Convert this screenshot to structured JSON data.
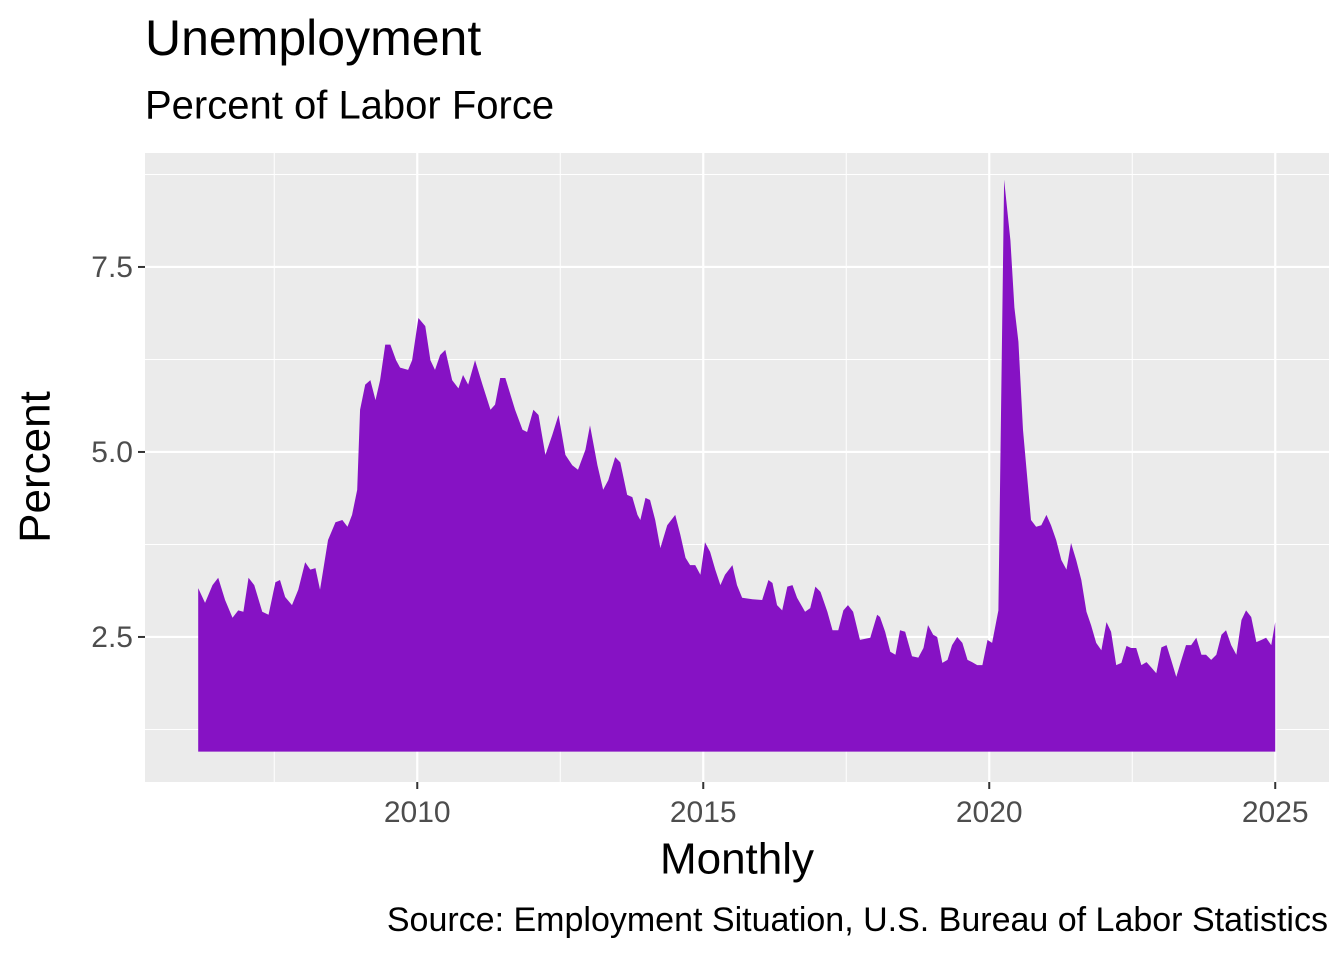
{
  "chart_data": {
    "type": "area",
    "title": "Unemployment",
    "subtitle": "Percent of Labor Force",
    "x_label": "Monthly",
    "y_label": "Percent",
    "caption": "Source: Employment Situation, U.S. Bureau of Labor Statistics",
    "color": "#8612c4",
    "area_base": 0.95,
    "xlim": [
      2005.24,
      2025.94
    ],
    "ylim": [
      0.54,
      9.04
    ],
    "xticks": [
      2010,
      2015,
      2020,
      2025
    ],
    "yticks": [
      2.5,
      {
        "value": 5,
        "label": "5.0"
      },
      7.5
    ],
    "grid": true,
    "x": [
      2006.17,
      2006.29,
      2006.42,
      2006.52,
      2006.64,
      2006.77,
      2006.87,
      2006.96,
      2007.05,
      2007.15,
      2007.29,
      2007.4,
      2007.52,
      2007.6,
      2007.69,
      2007.81,
      2007.92,
      2008.04,
      2008.13,
      2008.22,
      2008.3,
      2008.44,
      2008.57,
      2008.69,
      2008.78,
      2008.86,
      2008.95,
      2009.0,
      2009.09,
      2009.18,
      2009.27,
      2009.35,
      2009.44,
      2009.53,
      2009.63,
      2009.7,
      2009.84,
      2009.91,
      2010.02,
      2010.14,
      2010.23,
      2010.31,
      2010.4,
      2010.49,
      2010.61,
      2010.72,
      2010.8,
      2010.89,
      2011.01,
      2011.14,
      2011.28,
      2011.36,
      2011.45,
      2011.54,
      2011.71,
      2011.84,
      2011.92,
      2012.03,
      2012.12,
      2012.24,
      2012.36,
      2012.47,
      2012.59,
      2012.71,
      2012.81,
      2012.94,
      2013.02,
      2013.15,
      2013.25,
      2013.34,
      2013.46,
      2013.55,
      2013.67,
      2013.76,
      2013.85,
      2013.9,
      2013.99,
      2014.07,
      2014.16,
      2014.25,
      2014.37,
      2014.51,
      2014.6,
      2014.69,
      2014.77,
      2014.86,
      2014.95,
      2015.03,
      2015.12,
      2015.21,
      2015.3,
      2015.38,
      2015.51,
      2015.59,
      2015.68,
      2015.86,
      2016.03,
      2016.14,
      2016.21,
      2016.29,
      2016.38,
      2016.47,
      2016.56,
      2016.64,
      2016.78,
      2016.87,
      2016.96,
      2017.05,
      2017.17,
      2017.26,
      2017.36,
      2017.45,
      2017.53,
      2017.62,
      2017.74,
      2017.92,
      2018.04,
      2018.09,
      2018.18,
      2018.27,
      2018.36,
      2018.44,
      2018.53,
      2018.65,
      2018.76,
      2018.85,
      2018.93,
      2019.02,
      2019.09,
      2019.18,
      2019.27,
      2019.35,
      2019.44,
      2019.53,
      2019.62,
      2019.7,
      2019.79,
      2019.88,
      2019.97,
      2020.05,
      2020.16,
      2020.26,
      2020.37,
      2020.44,
      2020.51,
      2020.59,
      2020.66,
      2020.73,
      2020.82,
      2020.91,
      2021.0,
      2021.08,
      2021.17,
      2021.26,
      2021.35,
      2021.43,
      2021.52,
      2021.61,
      2021.7,
      2021.78,
      2021.87,
      2021.96,
      2022.05,
      2022.13,
      2022.22,
      2022.31,
      2022.4,
      2022.48,
      2022.57,
      2022.66,
      2022.75,
      2022.83,
      2022.92,
      2023.01,
      2023.1,
      2023.18,
      2023.27,
      2023.36,
      2023.44,
      2023.53,
      2023.62,
      2023.71,
      2023.79,
      2023.88,
      2023.97,
      2024.06,
      2024.14,
      2024.23,
      2024.32,
      2024.41,
      2024.49,
      2024.58,
      2024.67,
      2024.76,
      2024.84,
      2024.93,
      2025.0
    ],
    "values": [
      3.16,
      2.96,
      3.2,
      3.3,
      3.0,
      2.76,
      2.86,
      2.84,
      3.3,
      3.2,
      2.84,
      2.8,
      3.24,
      3.27,
      3.04,
      2.93,
      3.14,
      3.51,
      3.41,
      3.43,
      3.14,
      3.81,
      4.05,
      4.08,
      3.99,
      4.15,
      4.49,
      5.57,
      5.91,
      5.97,
      5.7,
      5.97,
      6.45,
      6.45,
      6.24,
      6.14,
      6.11,
      6.24,
      6.81,
      6.7,
      6.24,
      6.11,
      6.31,
      6.38,
      5.97,
      5.86,
      6.04,
      5.91,
      6.24,
      5.91,
      5.57,
      5.64,
      6.0,
      6.0,
      5.57,
      5.3,
      5.27,
      5.57,
      5.5,
      4.96,
      5.23,
      5.5,
      4.96,
      4.82,
      4.76,
      5.03,
      5.36,
      4.82,
      4.49,
      4.62,
      4.93,
      4.86,
      4.42,
      4.39,
      4.15,
      4.08,
      4.38,
      4.35,
      4.08,
      3.7,
      4.01,
      4.15,
      3.88,
      3.57,
      3.47,
      3.47,
      3.34,
      3.78,
      3.65,
      3.41,
      3.2,
      3.34,
      3.47,
      3.2,
      3.03,
      3.01,
      3.0,
      3.27,
      3.23,
      2.93,
      2.86,
      3.18,
      3.2,
      3.03,
      2.84,
      2.89,
      3.18,
      3.11,
      2.84,
      2.59,
      2.59,
      2.86,
      2.93,
      2.84,
      2.46,
      2.49,
      2.8,
      2.77,
      2.57,
      2.3,
      2.26,
      2.59,
      2.57,
      2.24,
      2.22,
      2.35,
      2.66,
      2.53,
      2.5,
      2.15,
      2.19,
      2.39,
      2.5,
      2.42,
      2.19,
      2.16,
      2.12,
      2.12,
      2.46,
      2.42,
      2.86,
      8.68,
      7.86,
      6.95,
      6.49,
      5.3,
      4.69,
      4.08,
      3.99,
      4.01,
      4.15,
      4.01,
      3.81,
      3.54,
      3.41,
      3.77,
      3.54,
      3.27,
      2.84,
      2.66,
      2.42,
      2.32,
      2.7,
      2.57,
      2.12,
      2.15,
      2.38,
      2.35,
      2.35,
      2.12,
      2.16,
      2.09,
      2.01,
      2.36,
      2.39,
      2.19,
      1.96,
      2.19,
      2.39,
      2.39,
      2.49,
      2.26,
      2.26,
      2.19,
      2.26,
      2.53,
      2.59,
      2.39,
      2.26,
      2.73,
      2.86,
      2.77,
      2.43,
      2.46,
      2.49,
      2.39,
      2.7
    ]
  }
}
